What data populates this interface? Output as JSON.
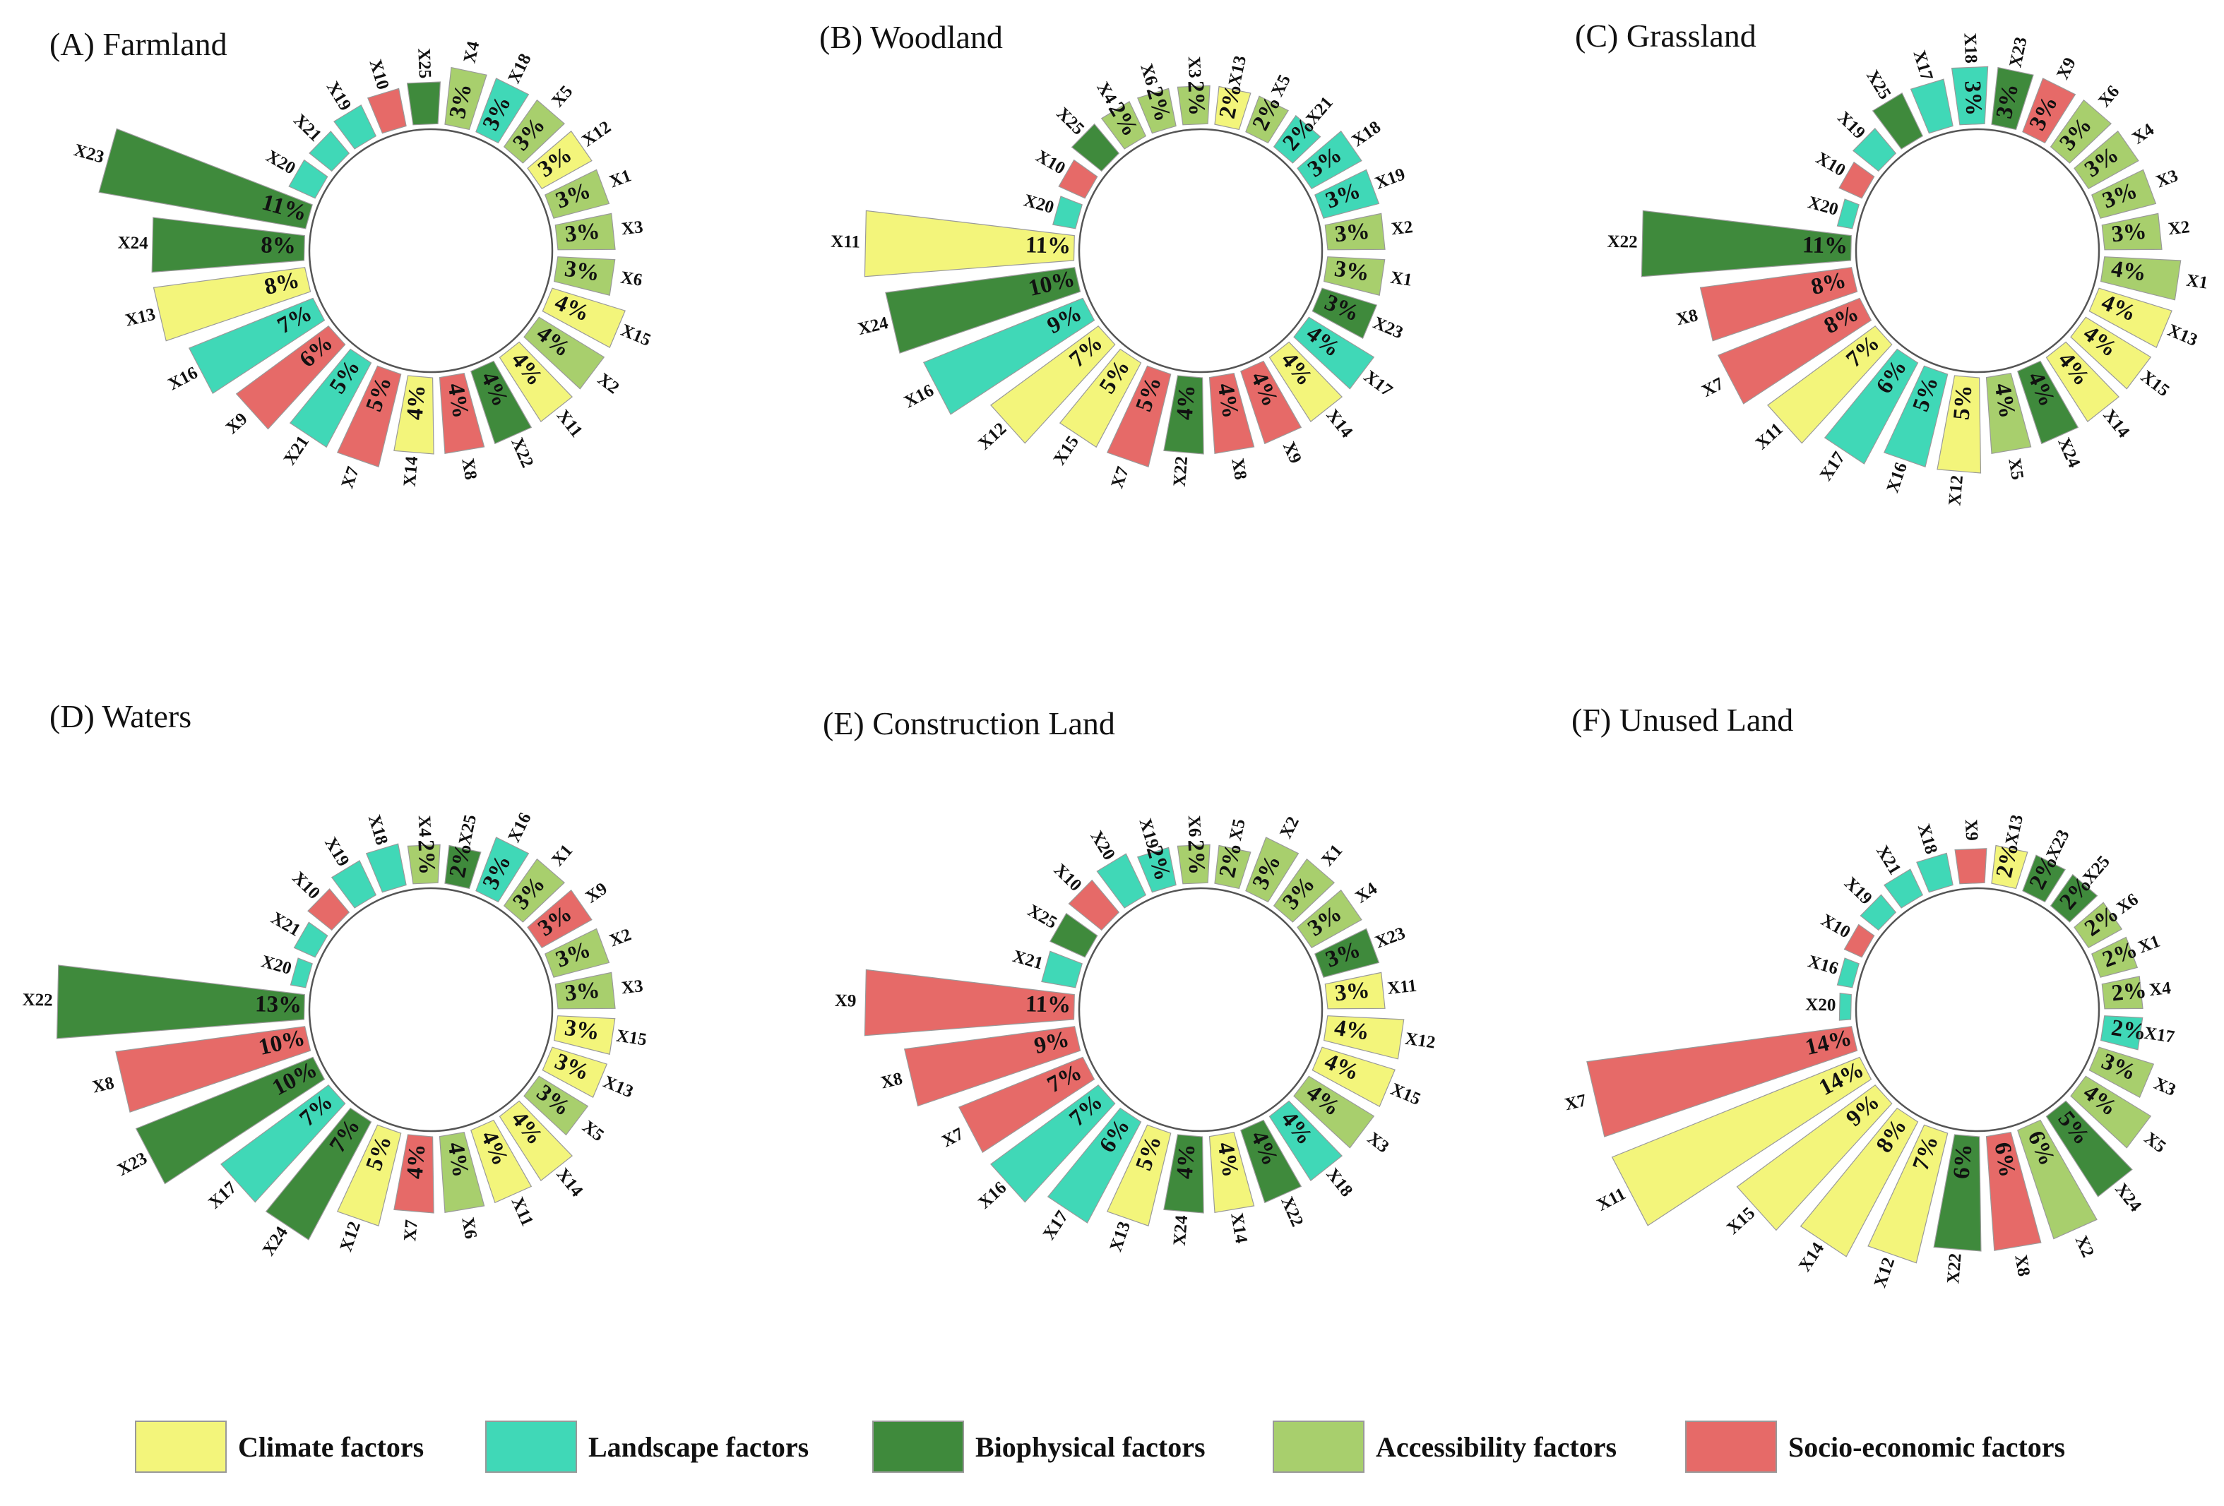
{
  "categories": [
    {
      "key": "climate",
      "label": "Climate factors",
      "color": "#f3f57b"
    },
    {
      "key": "landscape",
      "label": "Landscape factors",
      "color": "#40d8b7"
    },
    {
      "key": "biophysical",
      "label": "Biophysical factors",
      "color": "#3f8a3c"
    },
    {
      "key": "accessibility",
      "label": "Accessibility factors",
      "color": "#a8cf6d"
    },
    {
      "key": "socio",
      "label": "Socio-economic factors",
      "color": "#e66a68"
    }
  ],
  "factor_category": {
    "X1": "accessibility",
    "X2": "accessibility",
    "X3": "accessibility",
    "X4": "accessibility",
    "X5": "accessibility",
    "X6": "accessibility",
    "X7": "socio",
    "X8": "socio",
    "X9": "socio",
    "X10": "socio",
    "X11": "climate",
    "X12": "climate",
    "X13": "climate",
    "X14": "climate",
    "X15": "climate",
    "X16": "landscape",
    "X17": "landscape",
    "X18": "landscape",
    "X19": "landscape",
    "X20": "landscape",
    "X21": "landscape",
    "X22": "biophysical",
    "X23": "biophysical",
    "X24": "biophysical",
    "X25": "biophysical"
  },
  "chart_data": [
    {
      "type": "bar",
      "subtype": "circular",
      "title": "(A) Farmland",
      "bars": [
        {
          "label": "X4",
          "value": 3,
          "text": "3%"
        },
        {
          "label": "X18",
          "value": 3,
          "text": "3%"
        },
        {
          "label": "X5",
          "value": 3,
          "text": "3%"
        },
        {
          "label": "X12",
          "value": 3,
          "text": "3%"
        },
        {
          "label": "X1",
          "value": 3,
          "text": "3%"
        },
        {
          "label": "X3",
          "value": 3,
          "text": "3%"
        },
        {
          "label": "X6",
          "value": 3,
          "text": "3%"
        },
        {
          "label": "X15",
          "value": 4,
          "text": "4%"
        },
        {
          "label": "X2",
          "value": 4,
          "text": "4%"
        },
        {
          "label": "X11",
          "value": 4,
          "text": "4%"
        },
        {
          "label": "X22",
          "value": 4,
          "text": "4%"
        },
        {
          "label": "X8",
          "value": 4,
          "text": "4%"
        },
        {
          "label": "X14",
          "value": 4,
          "text": "4%"
        },
        {
          "label": "X7",
          "value": 5,
          "text": "5%"
        },
        {
          "label": "X21",
          "value": 5,
          "text": "5%"
        },
        {
          "label": "X9",
          "value": 6,
          "text": "6%"
        },
        {
          "label": "X16",
          "value": 7,
          "text": "7%"
        },
        {
          "label": "X13",
          "value": 8,
          "text": "8%"
        },
        {
          "label": "X24",
          "value": 8,
          "text": "8%"
        },
        {
          "label": "X23",
          "value": 11,
          "text": "11%"
        },
        {
          "label": "X20",
          "value": 1.5,
          "text": ""
        },
        {
          "label": "X21",
          "value": 1.5,
          "text": ""
        },
        {
          "label": "X19",
          "value": 1.8,
          "text": ""
        },
        {
          "label": "X10",
          "value": 2,
          "text": ""
        },
        {
          "label": "X25",
          "value": 2.2,
          "text": ""
        }
      ]
    },
    {
      "type": "bar",
      "subtype": "circular",
      "title": "(B) Woodland",
      "bars": [
        {
          "label": "X13",
          "value": 2,
          "text": "2%"
        },
        {
          "label": "X5",
          "value": 2,
          "text": "2%"
        },
        {
          "label": "X21",
          "value": 2,
          "text": "2%"
        },
        {
          "label": "X18",
          "value": 3,
          "text": "3%"
        },
        {
          "label": "X19",
          "value": 3,
          "text": "3%"
        },
        {
          "label": "X2",
          "value": 3,
          "text": "3%"
        },
        {
          "label": "X1",
          "value": 3,
          "text": "3%"
        },
        {
          "label": "X23",
          "value": 3,
          "text": "3%"
        },
        {
          "label": "X17",
          "value": 4,
          "text": "4%"
        },
        {
          "label": "X14",
          "value": 4,
          "text": "4%"
        },
        {
          "label": "X9",
          "value": 4,
          "text": "4%"
        },
        {
          "label": "X8",
          "value": 4,
          "text": "4%"
        },
        {
          "label": "X22",
          "value": 4,
          "text": "4%"
        },
        {
          "label": "X7",
          "value": 5,
          "text": "5%"
        },
        {
          "label": "X15",
          "value": 5,
          "text": "5%"
        },
        {
          "label": "X12",
          "value": 7,
          "text": "7%"
        },
        {
          "label": "X16",
          "value": 9,
          "text": "9%"
        },
        {
          "label": "X24",
          "value": 10,
          "text": "10%"
        },
        {
          "label": "X11",
          "value": 11,
          "text": "11%"
        },
        {
          "label": "X20",
          "value": 1.2,
          "text": ""
        },
        {
          "label": "X10",
          "value": 1.5,
          "text": ""
        },
        {
          "label": "X25",
          "value": 2,
          "text": ""
        },
        {
          "label": "X4",
          "value": 2,
          "text": "2%"
        },
        {
          "label": "X6",
          "value": 2,
          "text": "2%"
        },
        {
          "label": "X3",
          "value": 2,
          "text": "2%"
        }
      ]
    },
    {
      "type": "bar",
      "subtype": "circular",
      "title": "(C) Grassland",
      "bars": [
        {
          "label": "X23",
          "value": 3,
          "text": "3%"
        },
        {
          "label": "X9",
          "value": 3,
          "text": "3%"
        },
        {
          "label": "X6",
          "value": 3,
          "text": "3%"
        },
        {
          "label": "X4",
          "value": 3,
          "text": "3%"
        },
        {
          "label": "X3",
          "value": 3,
          "text": "3%"
        },
        {
          "label": "X2",
          "value": 3,
          "text": "3%"
        },
        {
          "label": "X1",
          "value": 4,
          "text": "4%"
        },
        {
          "label": "X13",
          "value": 4,
          "text": "4%"
        },
        {
          "label": "X15",
          "value": 4,
          "text": "4%"
        },
        {
          "label": "X14",
          "value": 4,
          "text": "4%"
        },
        {
          "label": "X24",
          "value": 4,
          "text": "4%"
        },
        {
          "label": "X5",
          "value": 4,
          "text": "4%"
        },
        {
          "label": "X12",
          "value": 5,
          "text": "5%"
        },
        {
          "label": "X16",
          "value": 5,
          "text": "5%"
        },
        {
          "label": "X17",
          "value": 6,
          "text": "6%"
        },
        {
          "label": "X11",
          "value": 7,
          "text": "7%"
        },
        {
          "label": "X7",
          "value": 8,
          "text": "8%"
        },
        {
          "label": "X8",
          "value": 8,
          "text": "8%"
        },
        {
          "label": "X22",
          "value": 11,
          "text": "11%"
        },
        {
          "label": "X20",
          "value": 0.8,
          "text": ""
        },
        {
          "label": "X10",
          "value": 1.3,
          "text": ""
        },
        {
          "label": "X19",
          "value": 1.7,
          "text": ""
        },
        {
          "label": "X25",
          "value": 2.5,
          "text": ""
        },
        {
          "label": "X17",
          "value": 2.5,
          "text": ""
        },
        {
          "label": "X18",
          "value": 3,
          "text": "3%"
        }
      ]
    },
    {
      "type": "bar",
      "subtype": "circular",
      "title": "(D) Waters",
      "bars": [
        {
          "label": "X25",
          "value": 2,
          "text": "2%"
        },
        {
          "label": "X16",
          "value": 3,
          "text": "3%"
        },
        {
          "label": "X1",
          "value": 3,
          "text": "3%"
        },
        {
          "label": "X9",
          "value": 3,
          "text": "3%"
        },
        {
          "label": "X2",
          "value": 3,
          "text": "3%"
        },
        {
          "label": "X3",
          "value": 3,
          "text": "3%"
        },
        {
          "label": "X15",
          "value": 3,
          "text": "3%"
        },
        {
          "label": "X13",
          "value": 3,
          "text": "3%"
        },
        {
          "label": "X5",
          "value": 3,
          "text": "3%"
        },
        {
          "label": "X14",
          "value": 4,
          "text": "4%"
        },
        {
          "label": "X11",
          "value": 4,
          "text": "4%"
        },
        {
          "label": "X6",
          "value": 4,
          "text": "4%"
        },
        {
          "label": "X7",
          "value": 4,
          "text": "4%"
        },
        {
          "label": "X12",
          "value": 5,
          "text": "5%"
        },
        {
          "label": "X24",
          "value": 7,
          "text": "7%"
        },
        {
          "label": "X17",
          "value": 7,
          "text": "7%"
        },
        {
          "label": "X23",
          "value": 10,
          "text": "10%"
        },
        {
          "label": "X8",
          "value": 10,
          "text": "10%"
        },
        {
          "label": "X22",
          "value": 13,
          "text": "13%"
        },
        {
          "label": "X20",
          "value": 0.8,
          "text": ""
        },
        {
          "label": "X21",
          "value": 1.2,
          "text": ""
        },
        {
          "label": "X10",
          "value": 1.6,
          "text": ""
        },
        {
          "label": "X19",
          "value": 2,
          "text": ""
        },
        {
          "label": "X18",
          "value": 2.2,
          "text": ""
        },
        {
          "label": "X4",
          "value": 2,
          "text": "2%"
        }
      ]
    },
    {
      "type": "bar",
      "subtype": "circular",
      "title": "(E) Construction Land",
      "bars": [
        {
          "label": "X5",
          "value": 2,
          "text": "2%"
        },
        {
          "label": "X2",
          "value": 3,
          "text": "3%"
        },
        {
          "label": "X1",
          "value": 3,
          "text": "3%"
        },
        {
          "label": "X4",
          "value": 3,
          "text": "3%"
        },
        {
          "label": "X23",
          "value": 3,
          "text": "3%"
        },
        {
          "label": "X11",
          "value": 3,
          "text": "3%"
        },
        {
          "label": "X12",
          "value": 4,
          "text": "4%"
        },
        {
          "label": "X15",
          "value": 4,
          "text": "4%"
        },
        {
          "label": "X3",
          "value": 4,
          "text": "4%"
        },
        {
          "label": "X18",
          "value": 4,
          "text": "4%"
        },
        {
          "label": "X22",
          "value": 4,
          "text": "4%"
        },
        {
          "label": "X14",
          "value": 4,
          "text": "4%"
        },
        {
          "label": "X24",
          "value": 4,
          "text": "4%"
        },
        {
          "label": "X13",
          "value": 5,
          "text": "5%"
        },
        {
          "label": "X17",
          "value": 6,
          "text": "6%"
        },
        {
          "label": "X16",
          "value": 7,
          "text": "7%"
        },
        {
          "label": "X7",
          "value": 7,
          "text": "7%"
        },
        {
          "label": "X8",
          "value": 9,
          "text": "9%"
        },
        {
          "label": "X9",
          "value": 11,
          "text": "11%"
        },
        {
          "label": "X21",
          "value": 1.8,
          "text": ""
        },
        {
          "label": "X25",
          "value": 2,
          "text": ""
        },
        {
          "label": "X10",
          "value": 2.2,
          "text": ""
        },
        {
          "label": "X20",
          "value": 2.4,
          "text": ""
        },
        {
          "label": "X19",
          "value": 2,
          "text": "2%"
        },
        {
          "label": "X6",
          "value": 2,
          "text": "2%"
        }
      ]
    },
    {
      "type": "bar",
      "subtype": "circular",
      "title": "(F) Unused Land",
      "bars": [
        {
          "label": "X13",
          "value": 2,
          "text": "2%"
        },
        {
          "label": "X23",
          "value": 2,
          "text": "2%"
        },
        {
          "label": "X25",
          "value": 2,
          "text": "2%"
        },
        {
          "label": "X6",
          "value": 2,
          "text": "2%"
        },
        {
          "label": "X1",
          "value": 2,
          "text": "2%"
        },
        {
          "label": "X4",
          "value": 2,
          "text": "2%"
        },
        {
          "label": "X17",
          "value": 2,
          "text": "2%"
        },
        {
          "label": "X3",
          "value": 3,
          "text": "3%"
        },
        {
          "label": "X5",
          "value": 4,
          "text": "4%"
        },
        {
          "label": "X24",
          "value": 5,
          "text": "5%"
        },
        {
          "label": "X2",
          "value": 6,
          "text": "6%"
        },
        {
          "label": "X8",
          "value": 6,
          "text": "6%"
        },
        {
          "label": "X22",
          "value": 6,
          "text": "6%"
        },
        {
          "label": "X12",
          "value": 7,
          "text": "7%"
        },
        {
          "label": "X14",
          "value": 8,
          "text": "8%"
        },
        {
          "label": "X15",
          "value": 9,
          "text": "9%"
        },
        {
          "label": "X11",
          "value": 14,
          "text": "14%"
        },
        {
          "label": "X7",
          "value": 14,
          "text": "14%"
        },
        {
          "label": "X20",
          "value": 0.6,
          "text": ""
        },
        {
          "label": "X16",
          "value": 0.8,
          "text": ""
        },
        {
          "label": "X10",
          "value": 1,
          "text": ""
        },
        {
          "label": "X19",
          "value": 1.2,
          "text": ""
        },
        {
          "label": "X21",
          "value": 1.5,
          "text": ""
        },
        {
          "label": "X18",
          "value": 1.7,
          "text": ""
        },
        {
          "label": "X9",
          "value": 1.8,
          "text": ""
        }
      ]
    }
  ]
}
